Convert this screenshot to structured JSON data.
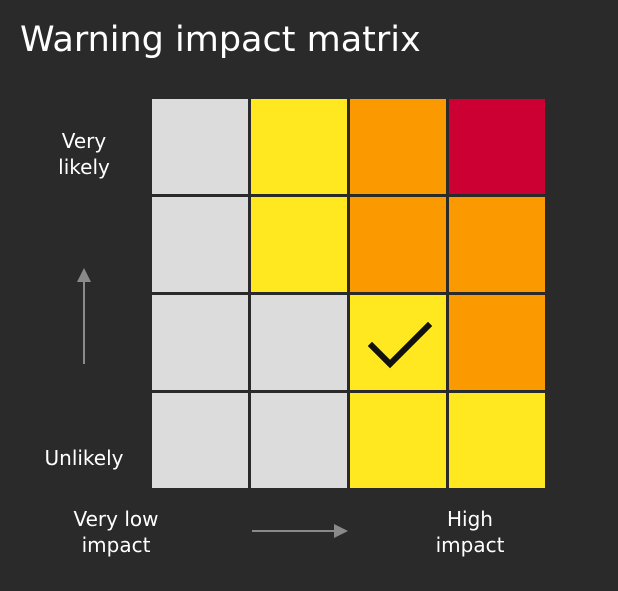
{
  "title": "Warning impact matrix",
  "axis": {
    "likelihood_high": [
      "Very",
      "likely"
    ],
    "likelihood_low": "Unlikely",
    "impact_low": [
      "Very low",
      "impact"
    ],
    "impact_high": [
      "High",
      "impact"
    ]
  },
  "colors": {
    "background": "#2a2a2a",
    "none": "#dcdcdc",
    "yellow": "#ffe81f",
    "amber": "#fb9a00",
    "red": "#cc0033",
    "arrow": "#8a8a8a",
    "check": "#111111"
  },
  "matrix": [
    [
      "none",
      "yellow",
      "amber",
      "red"
    ],
    [
      "none",
      "yellow",
      "amber",
      "amber"
    ],
    [
      "none",
      "none",
      "yellow",
      "amber"
    ],
    [
      "none",
      "none",
      "yellow",
      "yellow"
    ]
  ],
  "selected_cell": {
    "row": 2,
    "col": 2
  },
  "icons": {
    "selected_marker": "checkmark-icon",
    "likelihood_arrow": "arrow-up-icon",
    "impact_arrow": "arrow-right-icon"
  }
}
